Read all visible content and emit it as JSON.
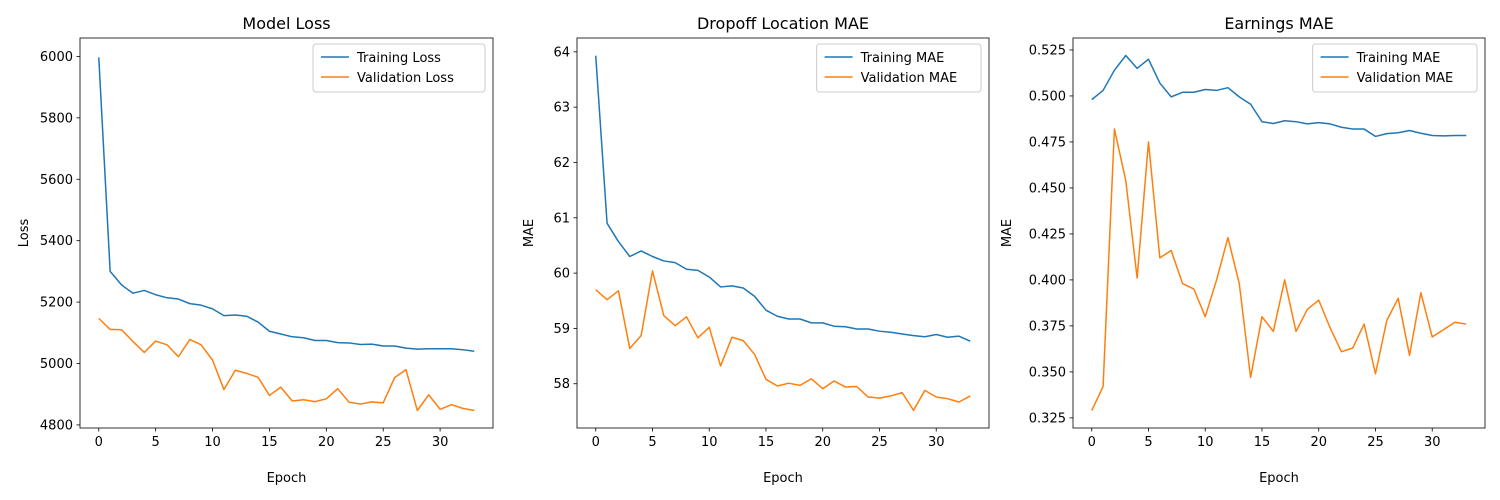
{
  "chart_data": [
    {
      "type": "line",
      "title": "Model Loss",
      "xlabel": "Epoch",
      "ylabel": "Loss",
      "xlim": [
        -1.65,
        34.65
      ],
      "ylim": [
        4790,
        6060
      ],
      "xticks": [
        0,
        5,
        10,
        15,
        20,
        25,
        30
      ],
      "yticks": [
        4800,
        5000,
        5200,
        5400,
        5600,
        5800,
        6000
      ],
      "yticklabels": [
        "4800",
        "5000",
        "5200",
        "5400",
        "5600",
        "5800",
        "6000"
      ],
      "legend": "upper right",
      "series": [
        {
          "name": "Training Loss",
          "color": "#1f77b4",
          "values": [
            5997,
            5300,
            5256,
            5229,
            5238,
            5224,
            5214,
            5210,
            5195,
            5190,
            5178,
            5156,
            5158,
            5154,
            5135,
            5105,
            5096,
            5087,
            5084,
            5075,
            5075,
            5068,
            5067,
            5062,
            5063,
            5057,
            5057,
            5050,
            5047,
            5048,
            5048,
            5048,
            5045,
            5040
          ]
        },
        {
          "name": "Validation Loss",
          "color": "#ff7f0e",
          "values": [
            5147,
            5111,
            5110,
            5072,
            5036,
            5073,
            5061,
            5022,
            5078,
            5061,
            5011,
            4915,
            4978,
            4968,
            4955,
            4896,
            4923,
            4878,
            4882,
            4876,
            4885,
            4918,
            4874,
            4868,
            4875,
            4872,
            4954,
            4980,
            4847,
            4898,
            4851,
            4866,
            4854,
            4847
          ]
        }
      ]
    },
    {
      "type": "line",
      "title": "Dropoff Location MAE",
      "xlabel": "Epoch",
      "ylabel": "MAE",
      "xlim": [
        -1.65,
        34.65
      ],
      "ylim": [
        57.2,
        64.25
      ],
      "xticks": [
        0,
        5,
        10,
        15,
        20,
        25,
        30
      ],
      "yticks": [
        58,
        59,
        60,
        61,
        62,
        63,
        64
      ],
      "yticklabels": [
        "58",
        "59",
        "60",
        "61",
        "62",
        "63",
        "64"
      ],
      "legend": "upper right",
      "series": [
        {
          "name": "Training MAE",
          "color": "#1f77b4",
          "values": [
            63.93,
            60.9,
            60.57,
            60.3,
            60.4,
            60.3,
            60.22,
            60.19,
            60.07,
            60.05,
            59.93,
            59.75,
            59.77,
            59.73,
            59.58,
            59.33,
            59.22,
            59.17,
            59.17,
            59.1,
            59.1,
            59.04,
            59.03,
            58.99,
            58.99,
            58.95,
            58.93,
            58.9,
            58.87,
            58.85,
            58.89,
            58.84,
            58.86,
            58.77
          ]
        },
        {
          "name": "Validation MAE",
          "color": "#ff7f0e",
          "values": [
            59.7,
            59.52,
            59.68,
            58.64,
            58.87,
            60.04,
            59.23,
            59.05,
            59.21,
            58.83,
            59.02,
            58.32,
            58.84,
            58.78,
            58.53,
            58.08,
            57.96,
            58.01,
            57.97,
            58.09,
            57.91,
            58.05,
            57.94,
            57.95,
            57.76,
            57.74,
            57.78,
            57.84,
            57.52,
            57.88,
            57.76,
            57.73,
            57.67,
            57.78
          ]
        }
      ]
    },
    {
      "type": "line",
      "title": "Earnings MAE",
      "xlabel": "Epoch",
      "ylabel": "MAE",
      "xlim": [
        -1.65,
        34.65
      ],
      "ylim": [
        0.3195,
        0.5315
      ],
      "xticks": [
        0,
        5,
        10,
        15,
        20,
        25,
        30
      ],
      "yticks": [
        0.325,
        0.35,
        0.375,
        0.4,
        0.425,
        0.45,
        0.475,
        0.5,
        0.525
      ],
      "yticklabels": [
        "0.325",
        "0.350",
        "0.375",
        "0.400",
        "0.425",
        "0.450",
        "0.475",
        "0.500",
        "0.525"
      ],
      "legend": "upper right",
      "series": [
        {
          "name": "Training MAE",
          "color": "#1f77b4",
          "values": [
            0.498,
            0.503,
            0.514,
            0.522,
            0.515,
            0.52,
            0.507,
            0.4995,
            0.502,
            0.502,
            0.5035,
            0.503,
            0.5045,
            0.4995,
            0.4955,
            0.486,
            0.485,
            0.4865,
            0.486,
            0.4848,
            0.4855,
            0.4848,
            0.483,
            0.482,
            0.482,
            0.478,
            0.4795,
            0.48,
            0.4812,
            0.4797,
            0.4785,
            0.4783,
            0.4785,
            0.4785
          ]
        },
        {
          "name": "Validation MAE",
          "color": "#ff7f0e",
          "values": [
            0.329,
            0.342,
            0.482,
            0.454,
            0.401,
            0.475,
            0.412,
            0.416,
            0.398,
            0.395,
            0.38,
            0.4,
            0.423,
            0.398,
            0.347,
            0.38,
            0.372,
            0.4,
            0.372,
            0.384,
            0.389,
            0.374,
            0.361,
            0.363,
            0.376,
            0.349,
            0.378,
            0.39,
            0.359,
            0.393,
            0.369,
            0.373,
            0.377,
            0.376
          ]
        }
      ]
    }
  ]
}
